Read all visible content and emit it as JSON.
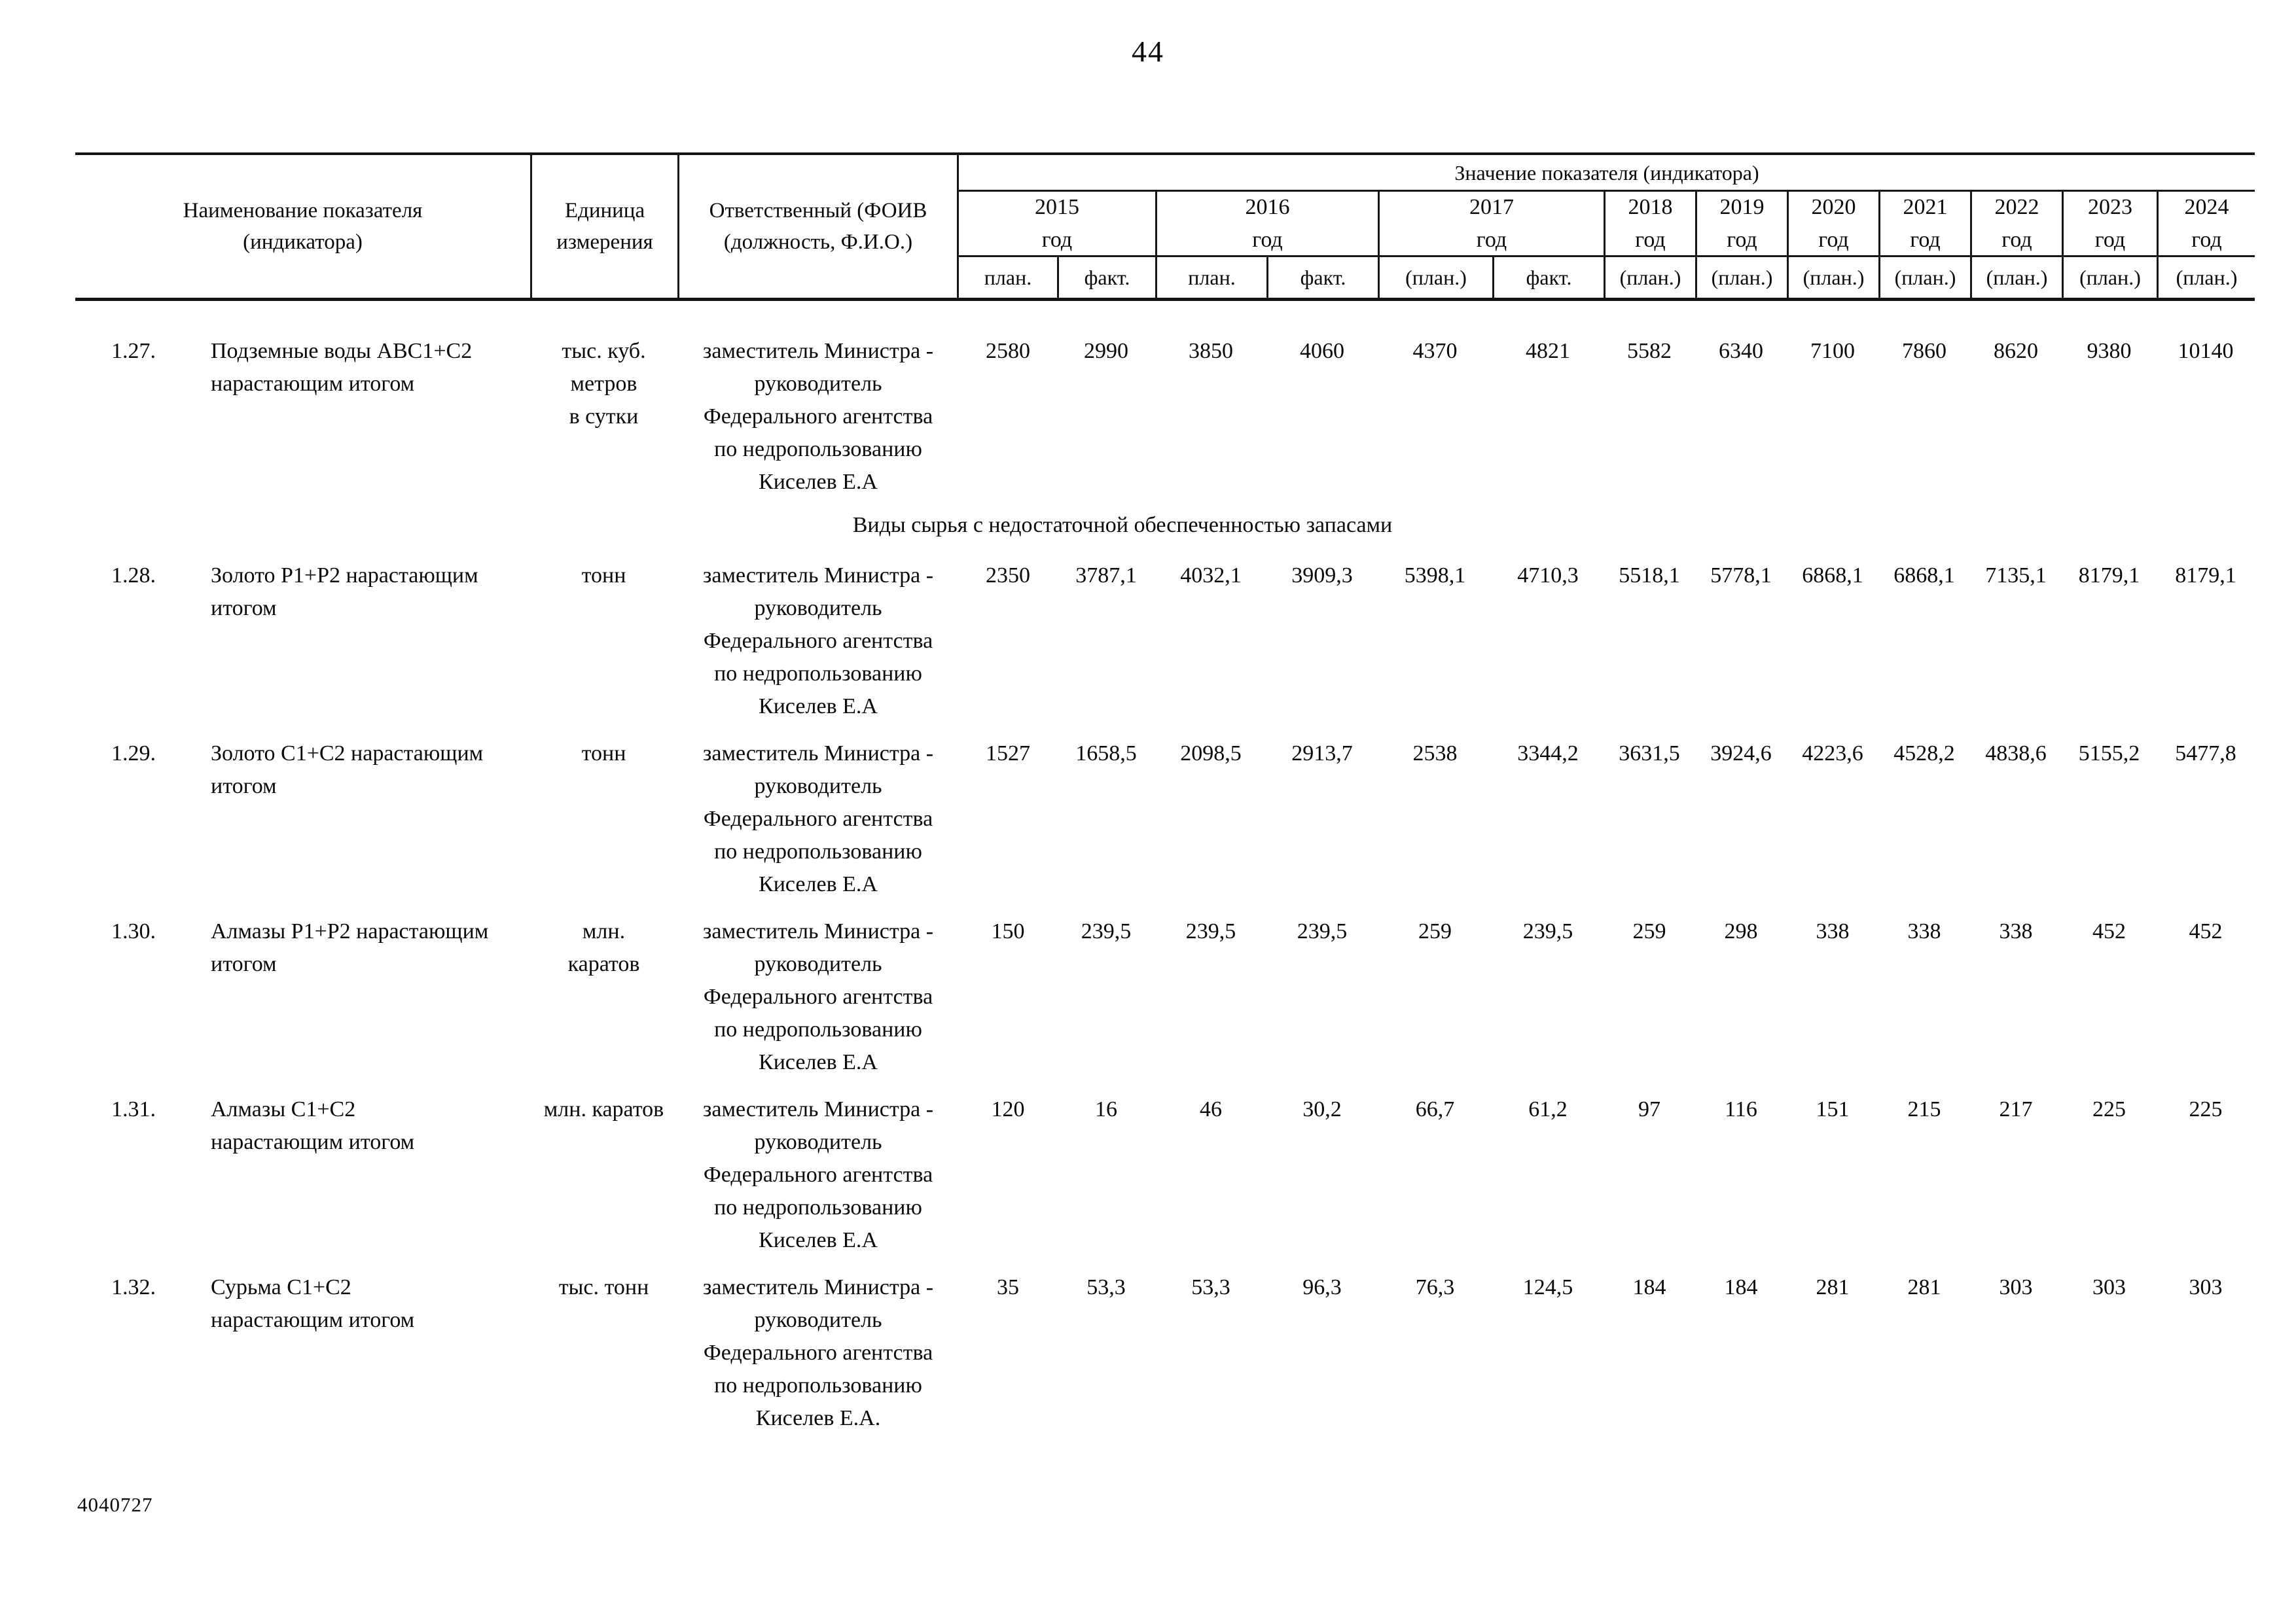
{
  "page": {
    "number": "44",
    "footer_code": "4040727"
  },
  "table": {
    "headers": {
      "name": "Наименование показателя\n(индикатора)",
      "unit": "Единица\nизмерения",
      "responsible": "Ответственный (ФОИВ\n(должность, Ф.И.О.)",
      "value_group": "Значение показателя (индикатора)",
      "years": [
        {
          "label": "2015\nгод",
          "sub": [
            "план.",
            "факт."
          ]
        },
        {
          "label": "2016\nгод",
          "sub": [
            "план.",
            "факт."
          ]
        },
        {
          "label": "2017\nгод",
          "sub": [
            "(план.)",
            "факт."
          ]
        },
        {
          "label": "2018\nгод",
          "sub": [
            "(план.)"
          ]
        },
        {
          "label": "2019\nгод",
          "sub": [
            "(план.)"
          ]
        },
        {
          "label": "2020\nгод",
          "sub": [
            "(план.)"
          ]
        },
        {
          "label": "2021\nгод",
          "sub": [
            "(план.)"
          ]
        },
        {
          "label": "2022\nгод",
          "sub": [
            "(план.)"
          ]
        },
        {
          "label": "2023\nгод",
          "sub": [
            "(план.)"
          ]
        },
        {
          "label": "2024\nгод",
          "sub": [
            "(план.)"
          ]
        }
      ]
    },
    "section_header": "Виды сырья с недостаточной обеспеченностью запасами",
    "rows": [
      {
        "num": "1.27.",
        "name": "Подземные воды АВС1+С2\nнарастающим итогом",
        "unit": "тыс. куб.\nметров\nв сутки",
        "responsible": "заместитель Министра -\nруководитель\nФедерального агентства\nпо недропользованию\nКиселев Е.А",
        "values": [
          "2580",
          "2990",
          "3850",
          "4060",
          "4370",
          "4821",
          "5582",
          "6340",
          "7100",
          "7860",
          "8620",
          "9380",
          "10140"
        ]
      },
      {
        "num": "1.28.",
        "name": "Золото Р1+Р2 нарастающим\nитогом",
        "unit": "тонн",
        "responsible": "заместитель Министра -\nруководитель\nФедерального агентства\nпо недропользованию\nКиселев Е.А",
        "values": [
          "2350",
          "3787,1",
          "4032,1",
          "3909,3",
          "5398,1",
          "4710,3",
          "5518,1",
          "5778,1",
          "6868,1",
          "6868,1",
          "7135,1",
          "8179,1",
          "8179,1"
        ]
      },
      {
        "num": "1.29.",
        "name": "Золото С1+С2 нарастающим\nитогом",
        "unit": "тонн",
        "responsible": "заместитель Министра -\nруководитель\nФедерального агентства\nпо недропользованию\nКиселев Е.А",
        "values": [
          "1527",
          "1658,5",
          "2098,5",
          "2913,7",
          "2538",
          "3344,2",
          "3631,5",
          "3924,6",
          "4223,6",
          "4528,2",
          "4838,6",
          "5155,2",
          "5477,8"
        ]
      },
      {
        "num": "1.30.",
        "name": "Алмазы Р1+Р2 нарастающим\nитогом",
        "unit": "млн.\nкаратов",
        "responsible": "заместитель Министра -\nруководитель\nФедерального агентства\nпо недропользованию\nКиселев Е.А",
        "values": [
          "150",
          "239,5",
          "239,5",
          "239,5",
          "259",
          "239,5",
          "259",
          "298",
          "338",
          "338",
          "338",
          "452",
          "452"
        ]
      },
      {
        "num": "1.31.",
        "name": "Алмазы С1+С2\nнарастающим итогом",
        "unit": "млн. каратов",
        "responsible": "заместитель Министра -\nруководитель\nФедерального агентства\nпо недропользованию\nКиселев Е.А",
        "values": [
          "120",
          "16",
          "46",
          "30,2",
          "66,7",
          "61,2",
          "97",
          "116",
          "151",
          "215",
          "217",
          "225",
          "225"
        ]
      },
      {
        "num": "1.32.",
        "name": "Сурьма С1+С2\nнарастающим итогом",
        "unit": "тыс. тонн",
        "responsible": "заместитель Министра -\nруководитель\nФедерального агентства\nпо недропользованию\nКиселев Е.А.",
        "values": [
          "35",
          "53,3",
          "53,3",
          "96,3",
          "76,3",
          "124,5",
          "184",
          "184",
          "281",
          "281",
          "303",
          "303",
          "303"
        ]
      }
    ]
  }
}
